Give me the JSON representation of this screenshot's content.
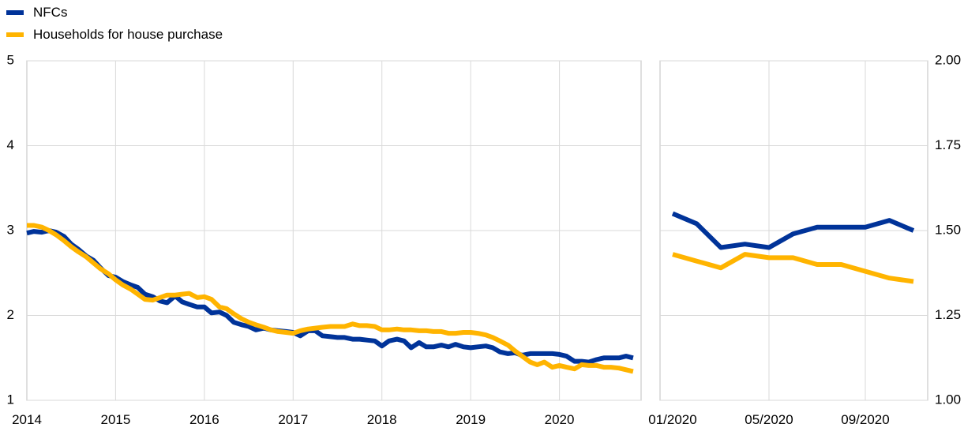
{
  "colors": {
    "nfcs": "#003399",
    "households": "#FFB400",
    "grid": "#d9d9d9",
    "axis": "#bfbfbf"
  },
  "legend": [
    {
      "key": "nfcs",
      "label": "NFCs"
    },
    {
      "key": "households",
      "label": "Households for house purchase"
    }
  ],
  "chart_data": [
    {
      "type": "line",
      "panel": "left",
      "x_ticks": [
        "2014",
        "2015",
        "2016",
        "2017",
        "2018",
        "2019",
        "2020"
      ],
      "y_ticks": [
        "1",
        "2",
        "3",
        "4",
        "5"
      ],
      "xlim": [
        2014,
        2020.92
      ],
      "ylim": [
        1,
        5
      ],
      "grid": true,
      "series": [
        {
          "name": "NFCs",
          "key": "nfcs",
          "x": [
            2014.0,
            2014.08,
            2014.17,
            2014.25,
            2014.33,
            2014.42,
            2014.5,
            2014.58,
            2014.67,
            2014.75,
            2014.83,
            2014.92,
            2015.0,
            2015.08,
            2015.17,
            2015.25,
            2015.33,
            2015.42,
            2015.5,
            2015.58,
            2015.67,
            2015.75,
            2015.83,
            2015.92,
            2016.0,
            2016.08,
            2016.17,
            2016.25,
            2016.33,
            2016.42,
            2016.5,
            2016.58,
            2016.67,
            2016.75,
            2016.83,
            2016.92,
            2017.0,
            2017.08,
            2017.17,
            2017.25,
            2017.33,
            2017.42,
            2017.5,
            2017.58,
            2017.67,
            2017.75,
            2017.83,
            2017.92,
            2018.0,
            2018.08,
            2018.17,
            2018.25,
            2018.33,
            2018.42,
            2018.5,
            2018.58,
            2018.67,
            2018.75,
            2018.83,
            2018.92,
            2019.0,
            2019.08,
            2019.17,
            2019.25,
            2019.33,
            2019.42,
            2019.5,
            2019.58,
            2019.67,
            2019.75,
            2019.83,
            2019.92,
            2020.0,
            2020.08,
            2020.17,
            2020.25,
            2020.33,
            2020.42,
            2020.5,
            2020.58,
            2020.67,
            2020.75,
            2020.83
          ],
          "values": [
            2.97,
            2.99,
            2.98,
            3.0,
            2.98,
            2.93,
            2.84,
            2.78,
            2.7,
            2.65,
            2.56,
            2.47,
            2.45,
            2.4,
            2.36,
            2.33,
            2.25,
            2.22,
            2.17,
            2.15,
            2.23,
            2.16,
            2.13,
            2.1,
            2.1,
            2.03,
            2.04,
            2.0,
            1.92,
            1.89,
            1.87,
            1.83,
            1.85,
            1.83,
            1.82,
            1.81,
            1.8,
            1.76,
            1.82,
            1.82,
            1.76,
            1.75,
            1.74,
            1.74,
            1.72,
            1.72,
            1.71,
            1.7,
            1.64,
            1.7,
            1.72,
            1.7,
            1.62,
            1.68,
            1.63,
            1.63,
            1.65,
            1.63,
            1.66,
            1.63,
            1.62,
            1.63,
            1.64,
            1.62,
            1.57,
            1.55,
            1.56,
            1.53,
            1.55,
            1.55,
            1.55,
            1.55,
            1.54,
            1.52,
            1.46,
            1.46,
            1.45,
            1.48,
            1.5,
            1.5,
            1.5,
            1.52,
            1.5
          ]
        },
        {
          "name": "Households for house purchase",
          "key": "households",
          "x": [
            2014.0,
            2014.08,
            2014.17,
            2014.25,
            2014.33,
            2014.42,
            2014.5,
            2014.58,
            2014.67,
            2014.75,
            2014.83,
            2014.92,
            2015.0,
            2015.08,
            2015.17,
            2015.25,
            2015.33,
            2015.42,
            2015.5,
            2015.58,
            2015.67,
            2015.75,
            2015.83,
            2015.92,
            2016.0,
            2016.08,
            2016.17,
            2016.25,
            2016.33,
            2016.42,
            2016.5,
            2016.58,
            2016.67,
            2016.75,
            2016.83,
            2016.92,
            2017.0,
            2017.08,
            2017.17,
            2017.25,
            2017.33,
            2017.42,
            2017.5,
            2017.58,
            2017.67,
            2017.75,
            2017.83,
            2017.92,
            2018.0,
            2018.08,
            2018.17,
            2018.25,
            2018.33,
            2018.42,
            2018.5,
            2018.58,
            2018.67,
            2018.75,
            2018.83,
            2018.92,
            2019.0,
            2019.08,
            2019.17,
            2019.25,
            2019.33,
            2019.42,
            2019.5,
            2019.58,
            2019.67,
            2019.75,
            2019.83,
            2019.92,
            2020.0,
            2020.08,
            2020.17,
            2020.25,
            2020.33,
            2020.42,
            2020.5,
            2020.58,
            2020.67,
            2020.75,
            2020.83
          ],
          "values": [
            3.06,
            3.06,
            3.04,
            3.0,
            2.95,
            2.88,
            2.81,
            2.75,
            2.69,
            2.62,
            2.55,
            2.49,
            2.42,
            2.36,
            2.31,
            2.25,
            2.19,
            2.18,
            2.21,
            2.24,
            2.24,
            2.25,
            2.26,
            2.21,
            2.22,
            2.19,
            2.1,
            2.08,
            2.02,
            1.96,
            1.92,
            1.89,
            1.86,
            1.83,
            1.81,
            1.8,
            1.79,
            1.82,
            1.84,
            1.85,
            1.86,
            1.87,
            1.87,
            1.87,
            1.9,
            1.88,
            1.88,
            1.87,
            1.83,
            1.83,
            1.84,
            1.83,
            1.83,
            1.82,
            1.82,
            1.81,
            1.81,
            1.79,
            1.79,
            1.8,
            1.8,
            1.79,
            1.77,
            1.74,
            1.7,
            1.65,
            1.58,
            1.52,
            1.45,
            1.42,
            1.45,
            1.39,
            1.41,
            1.39,
            1.37,
            1.42,
            1.41,
            1.41,
            1.39,
            1.39,
            1.38,
            1.36,
            1.34
          ]
        }
      ]
    },
    {
      "type": "line",
      "panel": "right",
      "x_ticks": [
        "01/2020",
        "05/2020",
        "09/2020"
      ],
      "x_tick_index": [
        0,
        4,
        8
      ],
      "y_ticks": [
        "1.00",
        "1.25",
        "1.50",
        "1.75",
        "2.00"
      ],
      "ylim": [
        1.0,
        2.0
      ],
      "grid": true,
      "series": [
        {
          "name": "NFCs",
          "key": "nfcs",
          "values": [
            1.55,
            1.52,
            1.45,
            1.46,
            1.45,
            1.49,
            1.51,
            1.51,
            1.51,
            1.53,
            1.5
          ]
        },
        {
          "name": "Households for house purchase",
          "key": "households",
          "values": [
            1.43,
            1.41,
            1.39,
            1.43,
            1.42,
            1.42,
            1.4,
            1.4,
            1.38,
            1.36,
            1.35
          ]
        }
      ]
    }
  ]
}
